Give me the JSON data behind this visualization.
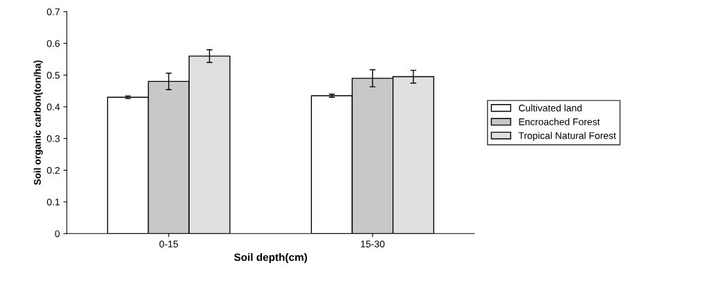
{
  "chart_data": {
    "type": "bar",
    "xlabel": "Soil depth(cm)",
    "ylabel": "Soil organic carbon(ton/ha)",
    "categories": [
      "0-15",
      "15-30"
    ],
    "series": [
      {
        "name": "Cultivated land",
        "color": "#ffffff",
        "values": [
          0.43,
          0.435
        ],
        "errors": [
          0.004,
          0.005
        ]
      },
      {
        "name": "Encroached Forest",
        "color": "#c8c8c8",
        "values": [
          0.48,
          0.49
        ],
        "errors": [
          0.026,
          0.027
        ]
      },
      {
        "name": "Tropical Natural Forest",
        "color": "#e0e0e0",
        "values": [
          0.56,
          0.495
        ],
        "errors": [
          0.02,
          0.02
        ]
      }
    ],
    "ylim": [
      0,
      0.7
    ],
    "yticks": [
      0,
      0.1,
      0.2,
      0.3,
      0.4,
      0.5,
      0.6,
      0.7
    ],
    "grid": false,
    "legend": "right"
  }
}
